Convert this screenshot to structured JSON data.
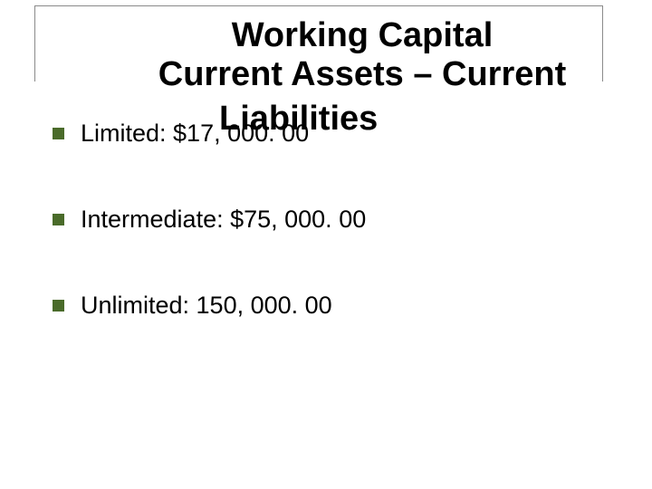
{
  "title": {
    "line1": "Working Capital",
    "line2": "Current Assets – Current",
    "line3": "Liabilities"
  },
  "bullets": [
    {
      "text": "Limited: $17, 000. 00"
    },
    {
      "text": "Intermediate:  $75, 000. 00"
    },
    {
      "text": "Unlimited: 150, 000. 00"
    }
  ],
  "colors": {
    "bullet": "#4a6b2a",
    "text": "#000000",
    "background": "#ffffff",
    "frame": "#8a8a8a"
  },
  "fonts": {
    "title_size": 38,
    "bullet_size": 27,
    "family": "Arial"
  }
}
